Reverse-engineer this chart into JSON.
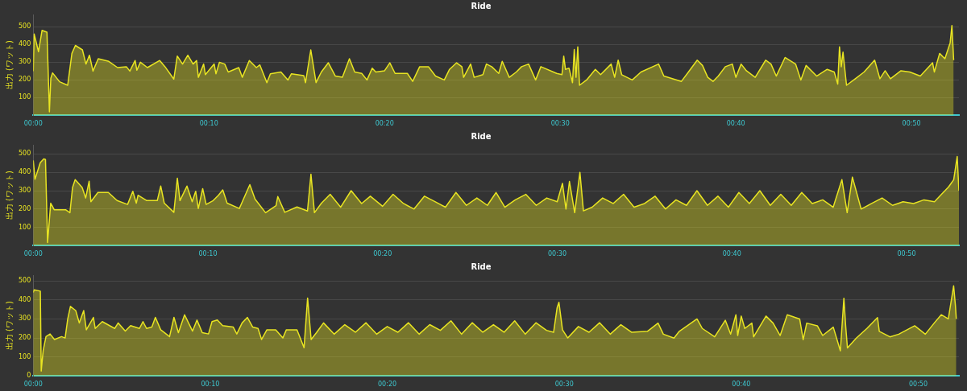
{
  "chart_data": [
    {
      "type": "area",
      "title": "Ride",
      "ylabel": "出力 (ワット)",
      "xlim": [
        0,
        52.7
      ],
      "ylim": [
        0,
        570
      ],
      "grid": "y",
      "xticks": [
        {
          "value": 0,
          "label": "00:00"
        },
        {
          "value": 10,
          "label": "00:10"
        },
        {
          "value": 20,
          "label": "00:20"
        },
        {
          "value": 30,
          "label": "00:30"
        },
        {
          "value": 40,
          "label": "00:40"
        },
        {
          "value": 50,
          "label": "00:50"
        }
      ],
      "yticks": [
        100,
        200,
        300,
        400,
        500
      ],
      "series": [
        {
          "color": "#e8e422",
          "x": [
            0,
            0.05,
            0.3,
            0.5,
            0.78,
            0.92,
            1.0,
            1.1,
            1.5,
            1.96,
            2.2,
            2.4,
            2.8,
            3.0,
            3.2,
            3.4,
            3.7,
            4.3,
            4.8,
            5.3,
            5.5,
            5.8,
            5.9,
            6.1,
            6.5,
            7.2,
            7.5,
            8.0,
            8.2,
            8.5,
            8.8,
            9.1,
            9.3,
            9.4,
            9.7,
            9.8,
            10.3,
            10.4,
            10.6,
            10.9,
            11.1,
            11.7,
            11.9,
            12.3,
            12.7,
            12.9,
            13.3,
            13.5,
            14.1,
            14.5,
            14.7,
            15.4,
            15.5,
            15.8,
            16.1,
            16.4,
            16.8,
            17.2,
            17.6,
            18.0,
            18.3,
            18.7,
            19.0,
            19.3,
            19.5,
            20.0,
            20.3,
            20.6,
            21.3,
            21.6,
            22.0,
            22.5,
            22.9,
            23.4,
            23.7,
            24.1,
            24.4,
            24.5,
            24.9,
            25.1,
            25.6,
            25.8,
            26.1,
            26.5,
            26.7,
            27.1,
            27.5,
            27.8,
            28.2,
            28.6,
            28.9,
            29.8,
            30.1,
            30.2,
            30.3,
            30.5,
            30.7,
            30.8,
            30.9,
            31.0,
            31.1,
            31.5,
            32.0,
            32.3,
            32.9,
            33.1,
            33.3,
            33.5,
            34.1,
            34.6,
            35.6,
            35.9,
            36.9,
            37.3,
            37.8,
            38.1,
            38.4,
            38.7,
            39.0,
            39.4,
            39.8,
            40.0,
            40.3,
            40.6,
            41.1,
            41.7,
            42.0,
            42.3,
            42.8,
            43.4,
            43.7,
            44.0,
            44.6,
            45.2,
            45.6,
            45.8,
            45.9,
            46.0,
            46.1,
            46.3,
            46.8,
            47.3,
            47.9,
            48.2,
            48.5,
            48.8,
            49.4,
            49.9,
            50.5,
            51.2,
            51.3,
            51.6,
            51.9,
            52.2,
            52.3,
            52.4
          ],
          "values": [
            250,
            460,
            360,
            480,
            470,
            20,
            210,
            240,
            190,
            170,
            350,
            395,
            370,
            290,
            340,
            250,
            320,
            305,
            270,
            275,
            250,
            310,
            255,
            300,
            270,
            310,
            275,
            205,
            335,
            290,
            340,
            290,
            310,
            215,
            290,
            230,
            290,
            235,
            300,
            290,
            245,
            270,
            215,
            310,
            270,
            285,
            185,
            235,
            245,
            200,
            235,
            225,
            185,
            370,
            185,
            245,
            297,
            222,
            215,
            320,
            245,
            237,
            200,
            267,
            245,
            252,
            297,
            237,
            237,
            192,
            275,
            275,
            222,
            200,
            260,
            297,
            275,
            215,
            290,
            215,
            230,
            290,
            275,
            237,
            305,
            215,
            245,
            275,
            290,
            200,
            275,
            237,
            230,
            335,
            260,
            267,
            185,
            372,
            215,
            387,
            170,
            200,
            260,
            230,
            290,
            215,
            312,
            230,
            200,
            245,
            290,
            222,
            192,
            245,
            312,
            282,
            215,
            192,
            222,
            275,
            290,
            215,
            290,
            252,
            215,
            312,
            290,
            222,
            327,
            290,
            200,
            282,
            222,
            260,
            245,
            177,
            387,
            275,
            357,
            170,
            207,
            245,
            312,
            207,
            252,
            207,
            252,
            245,
            222,
            297,
            245,
            350,
            320,
            410,
            507,
            312
          ]
        }
      ]
    },
    {
      "type": "area",
      "title": "Ride",
      "ylabel": "出力 (ワット)",
      "xlim": [
        0,
        53.0
      ],
      "ylim": [
        0,
        550
      ],
      "grid": "y",
      "xticks": [
        {
          "value": 0,
          "label": "00:00"
        },
        {
          "value": 10,
          "label": "00:10"
        },
        {
          "value": 20,
          "label": "00:20"
        },
        {
          "value": 30,
          "label": "00:30"
        },
        {
          "value": 40,
          "label": "00:40"
        },
        {
          "value": 50,
          "label": "00:50"
        }
      ],
      "yticks": [
        100,
        200,
        300,
        400,
        500
      ],
      "series": [
        {
          "color": "#e8e422",
          "x": [
            0,
            0.1,
            0.4,
            0.6,
            0.7,
            0.82,
            1.0,
            1.2,
            1.85,
            2.1,
            2.25,
            2.4,
            2.8,
            3.0,
            3.2,
            3.3,
            3.7,
            4.3,
            4.8,
            5.4,
            5.7,
            5.9,
            6.0,
            6.5,
            7.1,
            7.3,
            7.5,
            8.05,
            8.25,
            8.4,
            8.8,
            9.1,
            9.3,
            9.45,
            9.7,
            9.9,
            10.3,
            10.6,
            10.85,
            11.1,
            11.8,
            12.4,
            12.7,
            13.3,
            13.9,
            14.0,
            14.4,
            15.1,
            15.7,
            15.9,
            16.1,
            16.5,
            17.0,
            17.6,
            18.2,
            18.8,
            19.3,
            20.0,
            20.6,
            21.2,
            21.8,
            22.4,
            23.0,
            23.6,
            24.2,
            24.8,
            25.4,
            26.0,
            26.5,
            27.0,
            27.6,
            28.2,
            28.8,
            29.4,
            30.0,
            30.3,
            30.5,
            30.7,
            31.0,
            31.3,
            31.5,
            32.0,
            32.6,
            33.2,
            33.8,
            34.4,
            35.0,
            35.6,
            36.2,
            36.8,
            37.4,
            38.0,
            38.6,
            39.2,
            39.8,
            40.4,
            41.0,
            41.6,
            42.2,
            42.8,
            43.4,
            44.0,
            44.6,
            45.2,
            45.8,
            46.3,
            46.6,
            46.9,
            47.4,
            48.0,
            48.6,
            49.2,
            49.8,
            50.4,
            51.0,
            51.6,
            52.0,
            52.4,
            52.7,
            52.9,
            53.0
          ],
          "values": [
            465,
            362,
            452,
            473,
            470,
            17,
            232,
            196,
            196,
            180,
            318,
            360,
            318,
            260,
            352,
            240,
            290,
            290,
            246,
            225,
            297,
            232,
            275,
            246,
            246,
            325,
            232,
            182,
            368,
            246,
            325,
            240,
            297,
            203,
            311,
            225,
            246,
            275,
            304,
            232,
            203,
            333,
            254,
            180,
            218,
            268,
            182,
            211,
            189,
            390,
            180,
            232,
            280,
            210,
            300,
            230,
            270,
            215,
            280,
            230,
            200,
            270,
            240,
            210,
            290,
            220,
            260,
            220,
            290,
            210,
            250,
            280,
            220,
            260,
            240,
            340,
            200,
            350,
            180,
            400,
            190,
            210,
            260,
            230,
            280,
            210,
            230,
            270,
            200,
            250,
            220,
            300,
            220,
            270,
            210,
            290,
            230,
            300,
            220,
            280,
            220,
            290,
            230,
            250,
            210,
            360,
            180,
            374,
            200,
            230,
            260,
            220,
            240,
            230,
            250,
            240,
            280,
            320,
            360,
            486,
            300
          ]
        }
      ]
    },
    {
      "type": "area",
      "title": "Ride",
      "ylabel": "出力 (ワット)",
      "xlim": [
        0,
        52.3
      ],
      "ylim": [
        0,
        530
      ],
      "grid": "y",
      "xticks": [
        {
          "value": 0,
          "label": "00:00"
        },
        {
          "value": 10,
          "label": "00:10"
        },
        {
          "value": 20,
          "label": "00:20"
        },
        {
          "value": 30,
          "label": "00:30"
        },
        {
          "value": 40,
          "label": "00:40"
        },
        {
          "value": 50,
          "label": "00:50"
        }
      ],
      "yticks": [
        0,
        100,
        200,
        300,
        400,
        500
      ],
      "series": [
        {
          "color": "#e8e422",
          "x": [
            0,
            0.05,
            0.4,
            0.45,
            0.56,
            0.72,
            0.95,
            1.2,
            1.6,
            1.8,
            1.95,
            2.1,
            2.4,
            2.6,
            2.85,
            3.0,
            3.4,
            3.5,
            3.9,
            4.6,
            4.8,
            5.2,
            5.5,
            6.0,
            6.2,
            6.4,
            6.7,
            6.9,
            7.2,
            7.7,
            7.95,
            8.2,
            8.55,
            9.0,
            9.25,
            9.55,
            9.9,
            10.1,
            10.4,
            10.7,
            11.3,
            11.5,
            11.8,
            12.1,
            12.4,
            12.7,
            12.9,
            13.2,
            13.7,
            14.1,
            14.3,
            14.9,
            15.3,
            15.5,
            15.7,
            16.0,
            16.4,
            17.0,
            17.6,
            18.2,
            18.8,
            19.4,
            20.0,
            20.6,
            21.2,
            21.8,
            22.4,
            23.0,
            23.6,
            24.2,
            24.8,
            25.4,
            26.0,
            26.6,
            27.2,
            27.8,
            28.4,
            29.0,
            29.4,
            29.6,
            29.7,
            29.9,
            30.2,
            30.8,
            31.4,
            32.0,
            32.6,
            33.2,
            33.8,
            34.7,
            35.3,
            35.6,
            36.2,
            36.5,
            37.5,
            37.8,
            38.5,
            39.1,
            39.4,
            39.7,
            39.8,
            40.0,
            40.2,
            40.6,
            40.7,
            41.4,
            41.8,
            42.2,
            42.6,
            43.3,
            43.5,
            43.7,
            44.3,
            44.6,
            45.2,
            45.6,
            45.8,
            45.9,
            46.0,
            46.5,
            47.1,
            47.7,
            47.8,
            48.4,
            48.9,
            49.8,
            50.4,
            50.9,
            51.3,
            51.7,
            52.0,
            52.1,
            52.15
          ],
          "values": [
            439,
            453,
            446,
            26,
            134,
            207,
            221,
            192,
            207,
            200,
            301,
            366,
            344,
            279,
            344,
            243,
            308,
            250,
            286,
            250,
            279,
            236,
            265,
            250,
            286,
            250,
            257,
            308,
            243,
            207,
            308,
            228,
            322,
            236,
            294,
            228,
            221,
            286,
            294,
            265,
            257,
            221,
            279,
            308,
            257,
            250,
            192,
            243,
            243,
            200,
            243,
            243,
            149,
            410,
            192,
            228,
            279,
            220,
            270,
            230,
            280,
            220,
            260,
            230,
            280,
            220,
            270,
            240,
            290,
            220,
            280,
            230,
            270,
            230,
            290,
            220,
            280,
            240,
            230,
            360,
            387,
            243,
            200,
            260,
            230,
            280,
            220,
            270,
            230,
            235,
            278,
            220,
            199,
            235,
            300,
            250,
            206,
            293,
            220,
            322,
            213,
            315,
            250,
            278,
            206,
            315,
            278,
            213,
            322,
            300,
            191,
            278,
            264,
            213,
            257,
            133,
            409,
            264,
            148,
            199,
            250,
            307,
            235,
            206,
            220,
            264,
            220,
            278,
            322,
            300,
            474,
            372,
            300
          ]
        }
      ]
    }
  ]
}
